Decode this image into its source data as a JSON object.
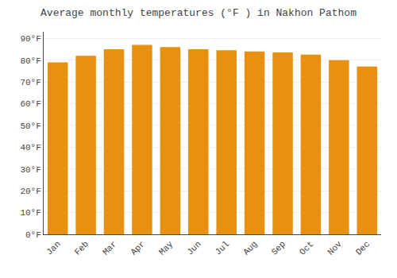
{
  "chart_data": {
    "type": "bar",
    "title": "Average monthly temperatures (°F ) in Nakhon Pathom",
    "categories": [
      "Jan",
      "Feb",
      "Mar",
      "Apr",
      "May",
      "Jun",
      "Jul",
      "Aug",
      "Sep",
      "Oct",
      "Nov",
      "Dec"
    ],
    "values": [
      79,
      82,
      85,
      87,
      86,
      85,
      84.5,
      84,
      83.5,
      82.5,
      80,
      77
    ],
    "color": "#E89010",
    "ylim": [
      0,
      93
    ],
    "yticks": [
      {
        "value": 0,
        "label": "0°F"
      },
      {
        "value": 10,
        "label": "10°F"
      },
      {
        "value": 20,
        "label": "20°F"
      },
      {
        "value": 30,
        "label": "30°F"
      },
      {
        "value": 40,
        "label": "40°F"
      },
      {
        "value": 50,
        "label": "50°F"
      },
      {
        "value": 60,
        "label": "60°F"
      },
      {
        "value": 70,
        "label": "70°F"
      },
      {
        "value": 80,
        "label": "80°F"
      },
      {
        "value": 90,
        "label": "90°F"
      }
    ],
    "grid": true
  }
}
